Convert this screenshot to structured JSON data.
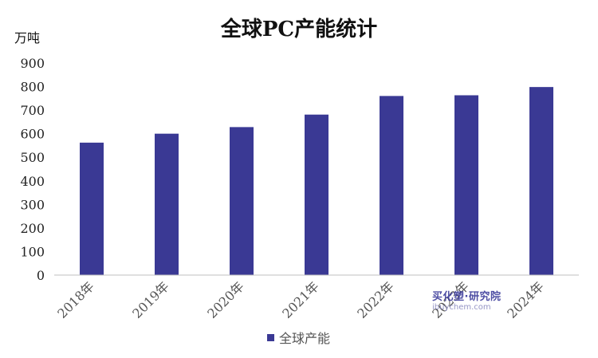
{
  "chart_data": {
    "type": "bar",
    "title": "全球PC产能统计",
    "ylabel": "万吨",
    "xlabel": "",
    "categories": [
      "2018年",
      "2019年",
      "2020年",
      "2021年",
      "2022年",
      "2023年",
      "2024年"
    ],
    "series": [
      {
        "name": "全球产能",
        "values": [
          562,
          600,
          628,
          681,
          760,
          763,
          798
        ],
        "color": "#3a3994"
      }
    ],
    "ylim": [
      0,
      900
    ],
    "yticks": [
      "0",
      "100",
      "200",
      "300",
      "400",
      "500",
      "600",
      "700",
      "800",
      "900"
    ],
    "grid": false,
    "legend_position": "bottom"
  },
  "watermark": {
    "main": "买化塑·研究院",
    "sub": "ibuychem.com"
  }
}
